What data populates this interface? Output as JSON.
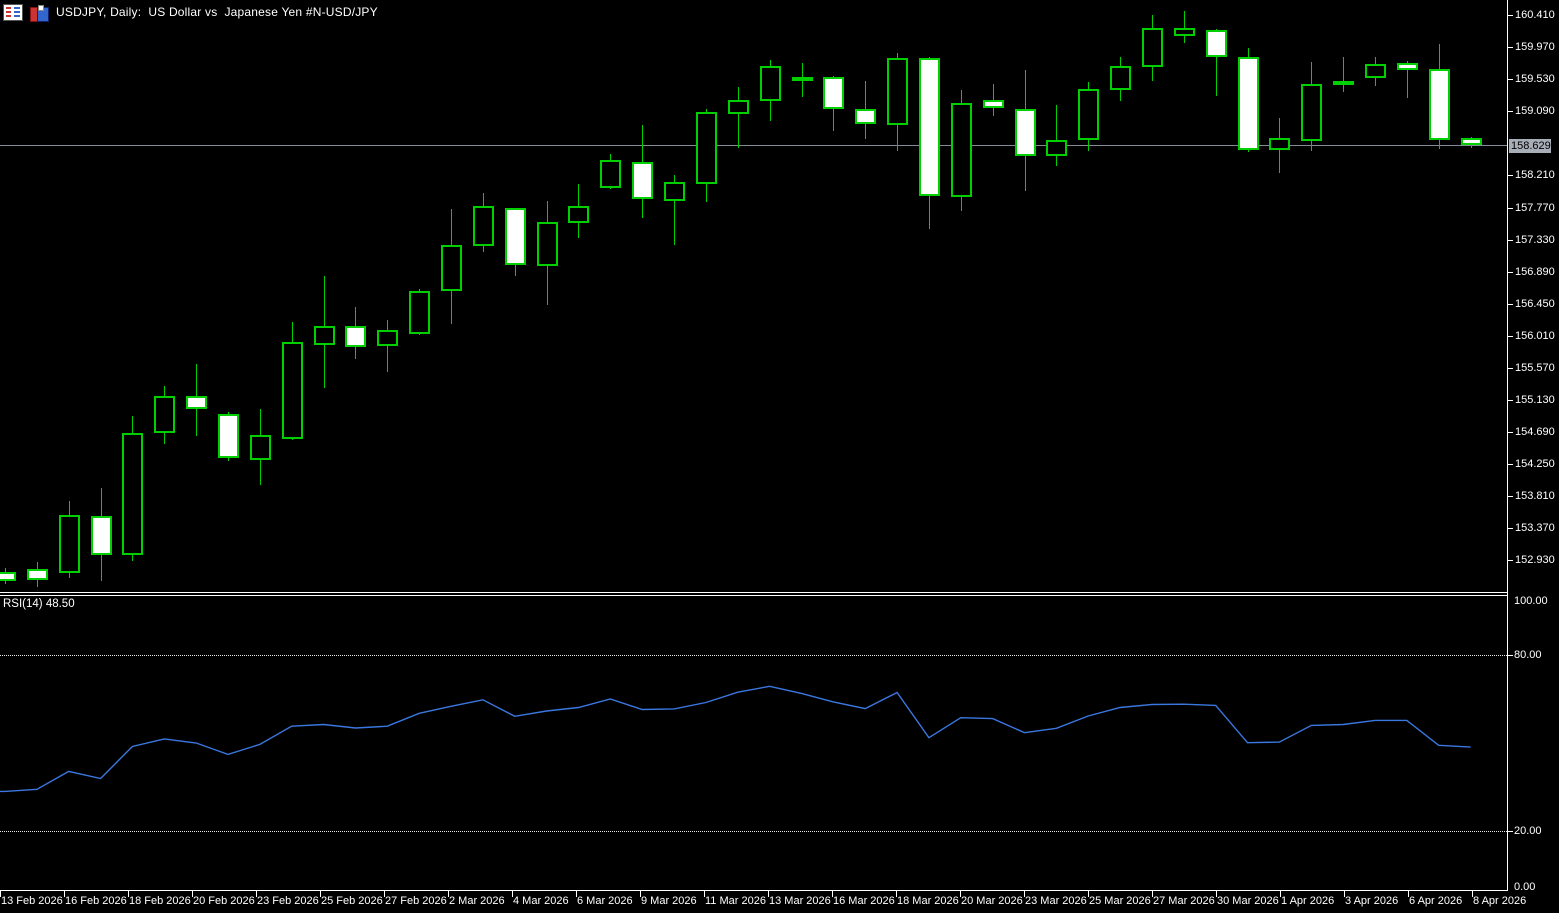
{
  "header": {
    "title": "USDJPY, Daily:  US Dollar vs  Japanese Yen #N-USD/JPY",
    "icons": [
      "market-watch-icon",
      "chart-window-icon"
    ]
  },
  "colors": {
    "background": "#000000",
    "candle_outline": "#00d000",
    "bear_fill": "#ffffff",
    "bull_fill": "#000000",
    "axis_text": "#ffffff",
    "axis_line": "#ffffff",
    "grid_dashed": "#e9e9e9",
    "price_line": "#828c99",
    "price_label_bg": "#a8aeb8",
    "price_label_text": "#000000",
    "rsi_line": "#3b77e0"
  },
  "chart_data": {
    "type": "candlestick",
    "symbol": "USDJPY",
    "timeframe": "Daily",
    "title": "USDJPY, Daily:  US Dollar vs  Japanese Yen #N-USD/JPY",
    "grid": "off",
    "price_axis": {
      "ylim": [
        152.497,
        160.616
      ],
      "tick_step": 0.44,
      "ticks": [
        160.41,
        159.97,
        159.53,
        159.09,
        158.21,
        157.77,
        157.33,
        156.89,
        156.45,
        156.01,
        155.57,
        155.13,
        154.69,
        154.25,
        153.81,
        153.37,
        152.93
      ],
      "current_price": "158.629",
      "decimals": 3
    },
    "time_axis": {
      "labels": [
        "13 Feb 2026",
        "16 Feb 2026",
        "18 Feb 2026",
        "20 Feb 2026",
        "23 Feb 2026",
        "25 Feb 2026",
        "27 Feb 2026",
        "2 Mar 2026",
        "4 Mar 2026",
        "6 Mar 2026",
        "9 Mar 2026",
        "11 Mar 2026",
        "13 Mar 2026",
        "16 Mar 2026",
        "18 Mar 2026",
        "20 Mar 2026",
        "23 Mar 2026",
        "25 Mar 2026",
        "27 Mar 2026",
        "30 Mar 2026",
        "1 Apr 2026",
        "3 Apr 2026",
        "6 Apr 2026",
        "8 Apr 2026"
      ]
    },
    "candles": [
      {
        "o": 152.77,
        "h": 152.83,
        "l": 152.61,
        "c": 152.65,
        "dir": "down"
      },
      {
        "o": 152.81,
        "h": 152.91,
        "l": 152.57,
        "c": 152.66,
        "dir": "down"
      },
      {
        "o": 152.76,
        "h": 153.75,
        "l": 152.69,
        "c": 153.55,
        "dir": "up"
      },
      {
        "o": 153.54,
        "h": 153.92,
        "l": 152.65,
        "c": 153.0,
        "dir": "down"
      },
      {
        "o": 153.0,
        "h": 154.91,
        "l": 152.92,
        "c": 154.68,
        "dir": "up"
      },
      {
        "o": 154.68,
        "h": 155.32,
        "l": 154.53,
        "c": 155.18,
        "dir": "up"
      },
      {
        "o": 155.18,
        "h": 155.63,
        "l": 154.63,
        "c": 155.0,
        "dir": "down"
      },
      {
        "o": 154.94,
        "h": 154.97,
        "l": 154.29,
        "c": 154.33,
        "dir": "down"
      },
      {
        "o": 154.31,
        "h": 155.01,
        "l": 153.96,
        "c": 154.65,
        "dir": "up"
      },
      {
        "o": 154.59,
        "h": 156.2,
        "l": 154.58,
        "c": 155.93,
        "dir": "up"
      },
      {
        "o": 155.89,
        "h": 156.83,
        "l": 155.3,
        "c": 156.14,
        "dir": "up"
      },
      {
        "o": 156.14,
        "h": 156.41,
        "l": 155.69,
        "c": 155.86,
        "dir": "down"
      },
      {
        "o": 155.87,
        "h": 156.23,
        "l": 155.51,
        "c": 156.09,
        "dir": "up"
      },
      {
        "o": 156.03,
        "h": 156.65,
        "l": 156.02,
        "c": 156.62,
        "dir": "up"
      },
      {
        "o": 156.62,
        "h": 157.75,
        "l": 156.17,
        "c": 157.26,
        "dir": "up"
      },
      {
        "o": 157.24,
        "h": 157.97,
        "l": 157.16,
        "c": 157.79,
        "dir": "up"
      },
      {
        "o": 157.76,
        "h": 157.77,
        "l": 156.83,
        "c": 156.98,
        "dir": "down"
      },
      {
        "o": 156.97,
        "h": 157.86,
        "l": 156.43,
        "c": 157.57,
        "dir": "up"
      },
      {
        "o": 157.56,
        "h": 158.1,
        "l": 157.35,
        "c": 157.79,
        "dir": "up"
      },
      {
        "o": 158.03,
        "h": 158.51,
        "l": 158.02,
        "c": 158.42,
        "dir": "up"
      },
      {
        "o": 158.4,
        "h": 158.9,
        "l": 157.63,
        "c": 157.89,
        "dir": "down"
      },
      {
        "o": 157.86,
        "h": 158.22,
        "l": 157.26,
        "c": 158.12,
        "dir": "up"
      },
      {
        "o": 158.09,
        "h": 159.12,
        "l": 157.85,
        "c": 159.08,
        "dir": "up"
      },
      {
        "o": 159.05,
        "h": 159.42,
        "l": 158.58,
        "c": 159.24,
        "dir": "up"
      },
      {
        "o": 159.23,
        "h": 159.79,
        "l": 158.95,
        "c": 159.71,
        "dir": "up"
      },
      {
        "o": 159.5,
        "h": 159.75,
        "l": 159.28,
        "c": 159.56,
        "dir": "up"
      },
      {
        "o": 159.56,
        "h": 159.57,
        "l": 158.82,
        "c": 159.12,
        "dir": "down"
      },
      {
        "o": 159.12,
        "h": 159.51,
        "l": 158.71,
        "c": 158.91,
        "dir": "down"
      },
      {
        "o": 158.9,
        "h": 159.89,
        "l": 158.55,
        "c": 159.82,
        "dir": "up"
      },
      {
        "o": 159.82,
        "h": 159.84,
        "l": 157.48,
        "c": 157.93,
        "dir": "down"
      },
      {
        "o": 157.92,
        "h": 159.38,
        "l": 157.72,
        "c": 159.21,
        "dir": "up"
      },
      {
        "o": 159.25,
        "h": 159.47,
        "l": 159.02,
        "c": 159.14,
        "dir": "down"
      },
      {
        "o": 159.12,
        "h": 159.66,
        "l": 157.99,
        "c": 158.48,
        "dir": "down"
      },
      {
        "o": 158.47,
        "h": 159.18,
        "l": 158.34,
        "c": 158.7,
        "dir": "up"
      },
      {
        "o": 158.7,
        "h": 159.49,
        "l": 158.55,
        "c": 159.39,
        "dir": "up"
      },
      {
        "o": 159.38,
        "h": 159.83,
        "l": 159.23,
        "c": 159.71,
        "dir": "up"
      },
      {
        "o": 159.69,
        "h": 160.41,
        "l": 159.51,
        "c": 160.23,
        "dir": "up"
      },
      {
        "o": 160.12,
        "h": 160.46,
        "l": 160.02,
        "c": 160.23,
        "dir": "up"
      },
      {
        "o": 160.21,
        "h": 160.22,
        "l": 159.3,
        "c": 159.83,
        "dir": "down"
      },
      {
        "o": 159.83,
        "h": 159.96,
        "l": 158.53,
        "c": 158.56,
        "dir": "down"
      },
      {
        "o": 158.56,
        "h": 159.0,
        "l": 158.24,
        "c": 158.72,
        "dir": "up"
      },
      {
        "o": 158.68,
        "h": 159.76,
        "l": 158.55,
        "c": 159.47,
        "dir": "up"
      },
      {
        "o": 159.48,
        "h": 159.84,
        "l": 159.35,
        "c": 159.5,
        "dir": "up"
      },
      {
        "o": 159.54,
        "h": 159.83,
        "l": 159.44,
        "c": 159.74,
        "dir": "up"
      },
      {
        "o": 159.75,
        "h": 159.78,
        "l": 159.28,
        "c": 159.66,
        "dir": "down"
      },
      {
        "o": 159.67,
        "h": 160.02,
        "l": 158.58,
        "c": 158.7,
        "dir": "down"
      },
      {
        "o": 158.72,
        "h": 158.74,
        "l": 158.58,
        "c": 158.629,
        "dir": "down"
      }
    ],
    "rsi": {
      "label": "RSI(14) 48.50",
      "name": "RSI",
      "period": 14,
      "value": "48.50",
      "levels": [
        80,
        20
      ],
      "axis_labels": [
        {
          "text": "100.00",
          "value": 100
        },
        {
          "text": "80.00",
          "value": 80
        },
        {
          "text": "20.00",
          "value": 20
        },
        {
          "text": "0.00",
          "value": 0
        }
      ],
      "ylim": [
        0,
        100
      ],
      "values": [
        33.4,
        34.1,
        40.2,
        37.8,
        48.7,
        51.3,
        49.9,
        46.0,
        49.4,
        55.6,
        56.2,
        55.0,
        55.6,
        60.0,
        62.4,
        64.6,
        59.0,
        60.8,
        62.0,
        64.9,
        61.3,
        61.5,
        63.7,
        67.2,
        69.2,
        66.8,
        63.9,
        61.6,
        67.1,
        51.7,
        58.5,
        58.2,
        53.4,
        54.9,
        59.1,
        62.0,
        63.0,
        63.1,
        62.7,
        50.0,
        50.2,
        55.9,
        56.2,
        57.6,
        57.6,
        49.1,
        48.5
      ]
    }
  }
}
